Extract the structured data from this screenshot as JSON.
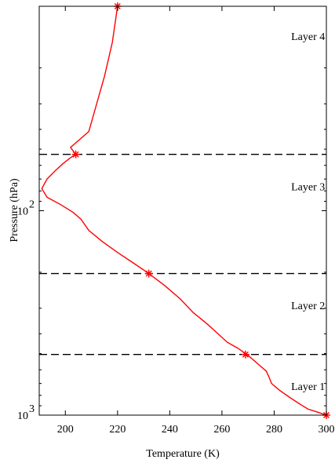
{
  "chart_data": {
    "type": "line",
    "xlabel": "Temperature (K)",
    "ylabel": "Pressure (hPa)",
    "xlim": [
      190,
      300
    ],
    "ylim": [
      10,
      1000
    ],
    "yscale": "log",
    "y_inverted": true,
    "grid": false,
    "x_ticks": [
      200,
      220,
      240,
      260,
      280,
      300
    ],
    "x_tick_labels": [
      "200",
      "220",
      "240",
      "260",
      "280",
      "300"
    ],
    "y_tick_labels": [
      {
        "value": 100,
        "base": "10",
        "exp": "2"
      },
      {
        "value": 1000,
        "base": "10",
        "exp": "3"
      }
    ],
    "series": [
      {
        "color": "#ff0000",
        "x": [
          300,
          297,
          293,
          290,
          286,
          282,
          279,
          278,
          277,
          274,
          270,
          266,
          262,
          258,
          254,
          249,
          244,
          238,
          232,
          226,
          220,
          214,
          209,
          206,
          203,
          198,
          193,
          191,
          193,
          196,
          199,
          202,
          204,
          202,
          209,
          212,
          215,
          218,
          220
        ],
        "y": [
          1000,
          970,
          935,
          885,
          820,
          755,
          700,
          650,
          610,
          565,
          510,
          470,
          440,
          395,
          355,
          315,
          270,
          232,
          203,
          180,
          160,
          141,
          125,
          110,
          102,
          93,
          86,
          78,
          70,
          64,
          59,
          55,
          53,
          49,
          41,
          30,
          22,
          15,
          10
        ]
      }
    ],
    "markers": {
      "color": "#ff0000",
      "symbol": "*",
      "x": [
        300,
        269,
        232,
        204,
        220
      ],
      "y": [
        1000,
        505,
        203,
        53,
        10
      ]
    },
    "boundaries": {
      "style": "dashed",
      "color": "#000000",
      "y": [
        505,
        203,
        53
      ]
    },
    "annotations": [
      {
        "text": "Layer 4",
        "x": 293,
        "y": 14
      },
      {
        "text": "Layer 3",
        "x": 293,
        "y": 76
      },
      {
        "text": "Layer 2",
        "x": 293,
        "y": 290
      },
      {
        "text": "Layer 1",
        "x": 293,
        "y": 720
      }
    ]
  }
}
